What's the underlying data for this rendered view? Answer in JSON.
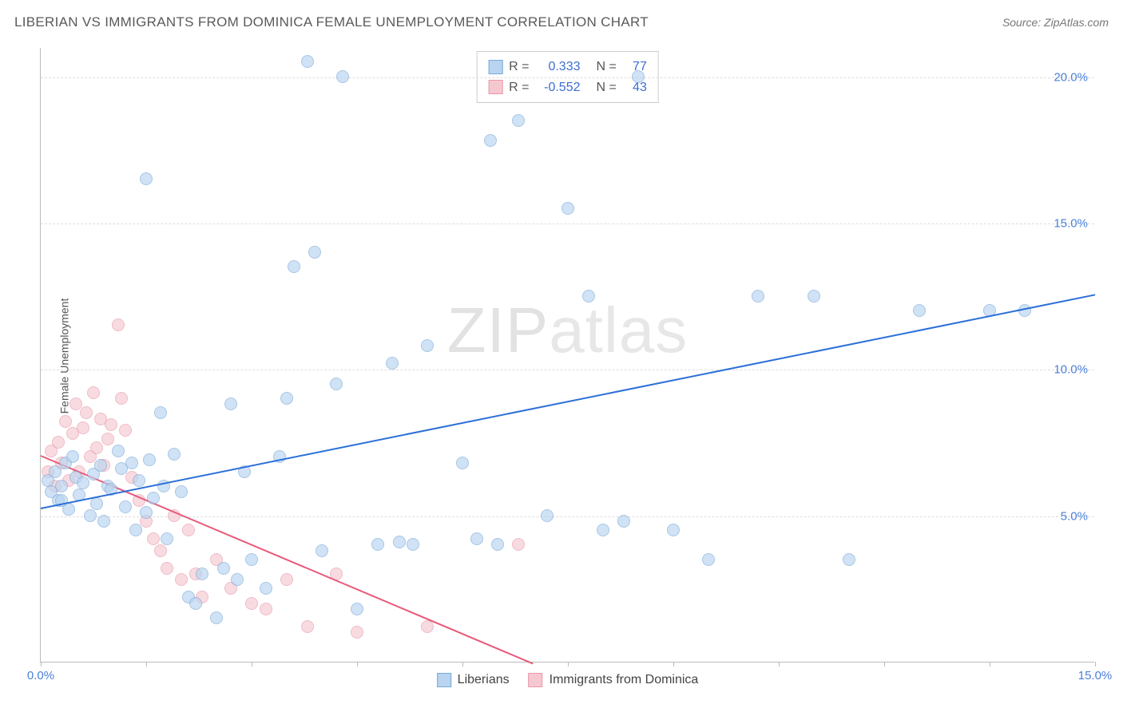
{
  "header": {
    "title": "LIBERIAN VS IMMIGRANTS FROM DOMINICA FEMALE UNEMPLOYMENT CORRELATION CHART",
    "source_prefix": "Source: ",
    "source_name": "ZipAtlas.com"
  },
  "axes": {
    "ylabel": "Female Unemployment",
    "xlim": [
      0,
      15
    ],
    "ylim": [
      0,
      21
    ],
    "xtick_positions": [
      0,
      1.5,
      3.0,
      4.5,
      6.0,
      7.5,
      9.0,
      10.5,
      12.0,
      13.5,
      15.0
    ],
    "xtick_labels": {
      "0": "0.0%",
      "15": "15.0%"
    },
    "ytick_positions": [
      5,
      10,
      15,
      20
    ],
    "ytick_labels": {
      "5": "5.0%",
      "10": "10.0%",
      "15": "15.0%",
      "20": "20.0%"
    },
    "grid_color": "#dddddd",
    "axis_color": "#bbbbbb",
    "tick_label_color": "#4a7fd8"
  },
  "watermark": {
    "bold": "ZIP",
    "light": "atlas"
  },
  "series": {
    "liberians": {
      "label": "Liberians",
      "fill": "#b8d4f0",
      "stroke": "#7aa8d8",
      "line_color": "#2c6fd8",
      "R": "0.333",
      "N": "77",
      "trend": {
        "x1": 0,
        "y1": 5.3,
        "x2": 15,
        "y2": 12.6
      },
      "points": [
        [
          0.1,
          6.2
        ],
        [
          0.15,
          5.8
        ],
        [
          0.2,
          6.5
        ],
        [
          0.25,
          5.5
        ],
        [
          0.3,
          6.0
        ],
        [
          0.35,
          6.8
        ],
        [
          0.4,
          5.2
        ],
        [
          0.45,
          7.0
        ],
        [
          0.5,
          6.3
        ],
        [
          0.55,
          5.7
        ],
        [
          0.6,
          6.1
        ],
        [
          0.7,
          5.0
        ],
        [
          0.75,
          6.4
        ],
        [
          0.8,
          5.4
        ],
        [
          0.85,
          6.7
        ],
        [
          0.9,
          4.8
        ],
        [
          0.95,
          6.0
        ],
        [
          1.0,
          5.9
        ],
        [
          1.1,
          7.2
        ],
        [
          1.15,
          6.6
        ],
        [
          1.2,
          5.3
        ],
        [
          1.3,
          6.8
        ],
        [
          1.35,
          4.5
        ],
        [
          1.4,
          6.2
        ],
        [
          1.5,
          5.1
        ],
        [
          1.55,
          6.9
        ],
        [
          1.6,
          5.6
        ],
        [
          1.7,
          8.5
        ],
        [
          1.75,
          6.0
        ],
        [
          1.8,
          4.2
        ],
        [
          1.9,
          7.1
        ],
        [
          2.0,
          5.8
        ],
        [
          2.1,
          2.2
        ],
        [
          2.2,
          2.0
        ],
        [
          2.3,
          3.0
        ],
        [
          2.5,
          1.5
        ],
        [
          2.6,
          3.2
        ],
        [
          2.7,
          8.8
        ],
        [
          2.8,
          2.8
        ],
        [
          2.9,
          6.5
        ],
        [
          1.5,
          16.5
        ],
        [
          3.0,
          3.5
        ],
        [
          3.2,
          2.5
        ],
        [
          3.4,
          7.0
        ],
        [
          3.5,
          9.0
        ],
        [
          3.6,
          13.5
        ],
        [
          3.8,
          20.5
        ],
        [
          3.9,
          14.0
        ],
        [
          4.0,
          3.8
        ],
        [
          4.2,
          9.5
        ],
        [
          4.3,
          20.0
        ],
        [
          4.5,
          1.8
        ],
        [
          4.8,
          4.0
        ],
        [
          5.0,
          10.2
        ],
        [
          5.1,
          4.1
        ],
        [
          5.3,
          4.0
        ],
        [
          5.5,
          10.8
        ],
        [
          6.0,
          6.8
        ],
        [
          6.2,
          4.2
        ],
        [
          6.4,
          17.8
        ],
        [
          6.5,
          4.0
        ],
        [
          6.8,
          18.5
        ],
        [
          7.2,
          5.0
        ],
        [
          7.5,
          15.5
        ],
        [
          7.8,
          12.5
        ],
        [
          8.0,
          4.5
        ],
        [
          8.3,
          4.8
        ],
        [
          8.5,
          20.0
        ],
        [
          9.0,
          4.5
        ],
        [
          9.5,
          3.5
        ],
        [
          10.2,
          12.5
        ],
        [
          11.0,
          12.5
        ],
        [
          11.5,
          3.5
        ],
        [
          12.5,
          12.0
        ],
        [
          13.5,
          12.0
        ],
        [
          14.0,
          12.0
        ],
        [
          0.3,
          5.5
        ]
      ]
    },
    "dominica": {
      "label": "Immigrants from Dominica",
      "fill": "#f5c8d0",
      "stroke": "#e898aa",
      "line_color": "#e85a7a",
      "R": "-0.552",
      "N": "43",
      "trend": {
        "x1": 0,
        "y1": 7.1,
        "x2": 7.0,
        "y2": 0
      },
      "points": [
        [
          0.1,
          6.5
        ],
        [
          0.15,
          7.2
        ],
        [
          0.2,
          6.0
        ],
        [
          0.25,
          7.5
        ],
        [
          0.3,
          6.8
        ],
        [
          0.35,
          8.2
        ],
        [
          0.4,
          6.2
        ],
        [
          0.45,
          7.8
        ],
        [
          0.5,
          8.8
        ],
        [
          0.55,
          6.5
        ],
        [
          0.6,
          8.0
        ],
        [
          0.65,
          8.5
        ],
        [
          0.7,
          7.0
        ],
        [
          0.75,
          9.2
        ],
        [
          0.8,
          7.3
        ],
        [
          0.85,
          8.3
        ],
        [
          0.9,
          6.7
        ],
        [
          0.95,
          7.6
        ],
        [
          1.0,
          8.1
        ],
        [
          1.1,
          11.5
        ],
        [
          1.15,
          9.0
        ],
        [
          1.2,
          7.9
        ],
        [
          1.3,
          6.3
        ],
        [
          1.4,
          5.5
        ],
        [
          1.5,
          4.8
        ],
        [
          1.6,
          4.2
        ],
        [
          1.7,
          3.8
        ],
        [
          1.8,
          3.2
        ],
        [
          1.9,
          5.0
        ],
        [
          2.0,
          2.8
        ],
        [
          2.1,
          4.5
        ],
        [
          2.2,
          3.0
        ],
        [
          2.3,
          2.2
        ],
        [
          2.5,
          3.5
        ],
        [
          2.7,
          2.5
        ],
        [
          3.0,
          2.0
        ],
        [
          3.2,
          1.8
        ],
        [
          3.5,
          2.8
        ],
        [
          3.8,
          1.2
        ],
        [
          4.2,
          3.0
        ],
        [
          4.5,
          1.0
        ],
        [
          5.5,
          1.2
        ],
        [
          6.8,
          4.0
        ]
      ]
    }
  },
  "stats_labels": {
    "R": "R =",
    "N": "N ="
  },
  "legend_order": [
    "liberians",
    "dominica"
  ]
}
